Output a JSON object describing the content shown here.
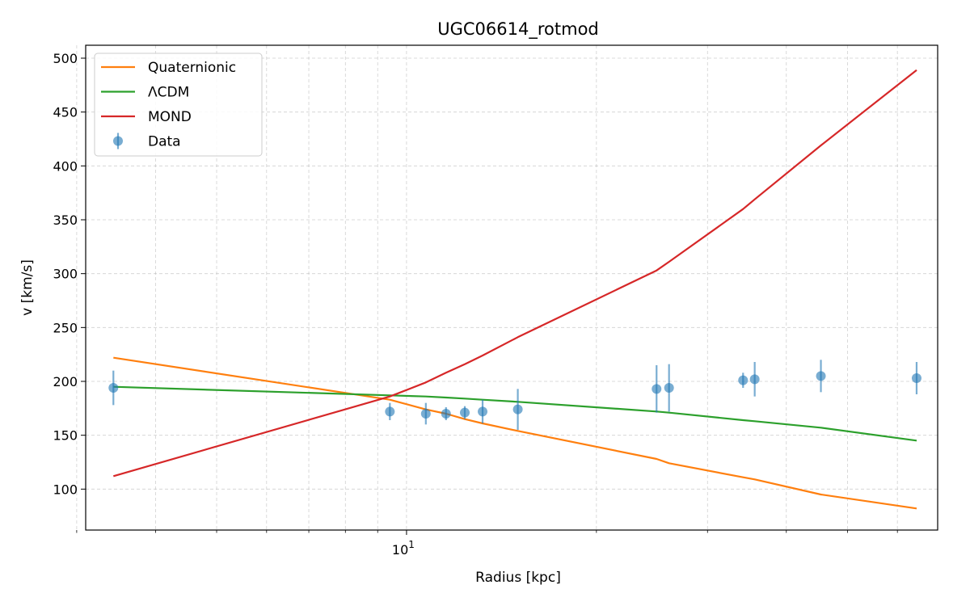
{
  "chart_data": {
    "type": "line",
    "title": "UGC06614_rotmod",
    "xlabel": "Radius [kpc]",
    "ylabel": "v [km/s]",
    "xscale": "log",
    "xlim": [
      3.1,
      69.5
    ],
    "ylim": [
      62,
      512
    ],
    "grid": true,
    "legend_position": "top-left",
    "x_tick_base": "10",
    "x_tick_exp": "1",
    "x_tick_value": 10,
    "y_ticks": [
      "100",
      "150",
      "200",
      "250",
      "300",
      "350",
      "400",
      "450",
      "500"
    ],
    "series": [
      {
        "name": "Quaternionic",
        "color": "#ff7f0e",
        "kind": "line",
        "x": [
          3.43,
          9.41,
          10.73,
          11.55,
          12.37,
          13.2,
          15.01,
          24.91,
          26.07,
          34.16,
          35.64,
          45.38,
          64.36
        ],
        "y": [
          222,
          183,
          174,
          170,
          165,
          161,
          154,
          128,
          124,
          111,
          109,
          95,
          82
        ]
      },
      {
        "name": "ΛCDM",
        "color": "#2ca02c",
        "kind": "line",
        "x": [
          3.43,
          9.41,
          10.73,
          11.55,
          12.37,
          13.2,
          15.01,
          24.91,
          26.07,
          34.16,
          35.64,
          45.38,
          64.36
        ],
        "y": [
          195,
          187,
          186,
          185,
          184,
          183,
          181,
          172,
          171,
          164,
          163,
          157,
          145
        ]
      },
      {
        "name": "MOND",
        "color": "#d62728",
        "kind": "line",
        "x": [
          3.43,
          9.41,
          10.73,
          11.55,
          12.37,
          13.2,
          15.01,
          24.91,
          26.07,
          34.16,
          35.64,
          45.38,
          64.36
        ],
        "y": [
          112,
          186,
          199,
          208,
          216,
          224,
          241,
          303,
          311,
          360,
          369,
          419,
          489
        ]
      },
      {
        "name": "Data",
        "color": "#1f77b4",
        "kind": "errorbar",
        "x": [
          3.43,
          9.41,
          10.73,
          11.55,
          12.37,
          13.2,
          15.01,
          24.91,
          26.07,
          34.16,
          35.64,
          45.38,
          64.36
        ],
        "y": [
          194,
          172,
          170,
          170,
          171,
          172,
          174,
          193,
          194,
          201,
          202,
          205,
          203
        ],
        "err": [
          16,
          8,
          10,
          6,
          6,
          11,
          19,
          22,
          22,
          7,
          16,
          15,
          15
        ]
      }
    ]
  }
}
